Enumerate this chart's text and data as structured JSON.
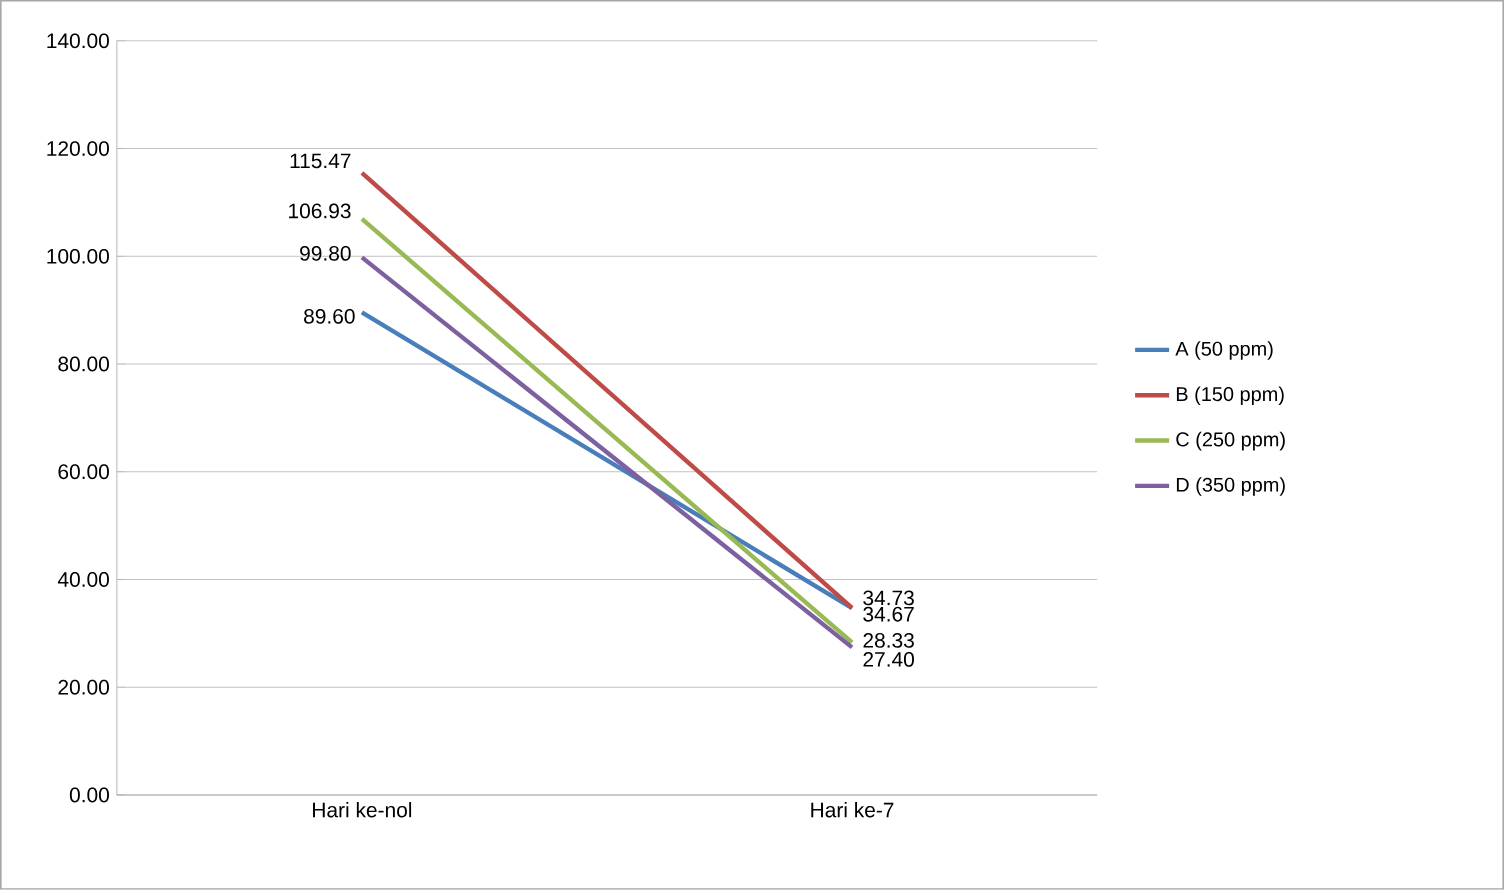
{
  "chart_data": {
    "type": "line",
    "categories": [
      "Hari ke-nol",
      "Hari ke-7"
    ],
    "series": [
      {
        "name": "A (50 ppm)",
        "color": "#4a7ebb",
        "values": [
          89.6,
          34.67
        ],
        "value_labels": [
          "89.60",
          "34.67"
        ]
      },
      {
        "name": "B (150 ppm)",
        "color": "#be4b48",
        "values": [
          115.47,
          34.73
        ],
        "value_labels": [
          "115.47",
          "34.73"
        ]
      },
      {
        "name": "C (250 ppm)",
        "color": "#98b954",
        "values": [
          106.93,
          28.33
        ],
        "value_labels": [
          "106.93",
          "28.33"
        ]
      },
      {
        "name": "D (350 ppm)",
        "color": "#7d60a0",
        "values": [
          99.8,
          27.4
        ],
        "value_labels": [
          "99.80",
          "27.40"
        ]
      }
    ],
    "ylim": [
      0,
      140
    ],
    "yticks": [
      {
        "value": 0,
        "label": "0.00"
      },
      {
        "value": 20,
        "label": "20.00"
      },
      {
        "value": 40,
        "label": "40.00"
      },
      {
        "value": 60,
        "label": "60.00"
      },
      {
        "value": 80,
        "label": "80.00"
      },
      {
        "value": 100,
        "label": "100.00"
      },
      {
        "value": 120,
        "label": "120.00"
      },
      {
        "value": 140,
        "label": "140.00"
      }
    ],
    "grid": "y",
    "legend": "right",
    "marker": "none",
    "line_style": "solid"
  }
}
